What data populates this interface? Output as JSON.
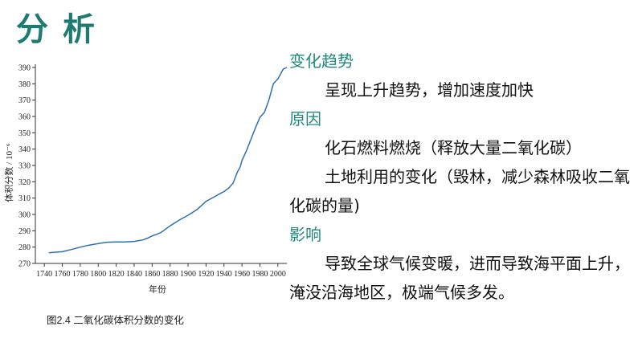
{
  "header": {
    "title": "分析"
  },
  "chart_data": {
    "type": "line",
    "ylabel": "体积分数 / 10⁻⁶",
    "xlabel": "年份",
    "xlim": [
      1730,
      2010
    ],
    "ylim": [
      270,
      390
    ],
    "x_ticks": [
      "1740",
      "1760",
      "1780",
      "1800",
      "1820",
      "1840",
      "1860",
      "1880",
      "1900",
      "1920",
      "1940",
      "1960",
      "1980",
      "2000"
    ],
    "y_ticks": [
      "270",
      "280",
      "290",
      "300",
      "310",
      "320",
      "330",
      "340",
      "350",
      "360",
      "370",
      "380",
      "390"
    ],
    "series": [
      {
        "x": [
          1745,
          1750,
          1760,
          1770,
          1780,
          1790,
          1800,
          1810,
          1820,
          1830,
          1840,
          1850,
          1855,
          1860,
          1865,
          1870,
          1880,
          1890,
          1900,
          1910,
          1920,
          1930,
          1935,
          1940,
          1945,
          1950,
          1955,
          1958,
          1960,
          1965,
          1970,
          1975,
          1980,
          1985,
          1990,
          1995,
          2000,
          2003,
          2006,
          2010
        ],
        "y": [
          276.5,
          276.8,
          277.2,
          278.5,
          280,
          281.2,
          282.2,
          283,
          283.2,
          283.2,
          283.5,
          284.4,
          285.5,
          286.8,
          287.8,
          289,
          293,
          296.5,
          299.5,
          303,
          308,
          311,
          312.6,
          314,
          316,
          319,
          326,
          329,
          333,
          339,
          346,
          353,
          359.5,
          362.5,
          370,
          380,
          383,
          386,
          389,
          390
        ]
      }
    ]
  },
  "caption": "图2.4 二氧化碳体积分数的变化",
  "panel": {
    "trend_heading": "变化趋势",
    "trend_text": "呈现上升趋势，增加速度加快",
    "cause_heading": "原因",
    "cause_1": "化石燃料燃烧（释放大量二氧化碳）",
    "cause_2": "土地利用的变化（毁林，减少森林吸收二氧化碳的量)",
    "impact_heading": "影响",
    "impact_text": "导致全球气候变暖，进而导致海平面上升，淹没沿海地区，极端气候多发。"
  },
  "colors": {
    "title": "#1f7a6f",
    "heading": "#1f8a7a",
    "line": "#2f6fb0"
  }
}
